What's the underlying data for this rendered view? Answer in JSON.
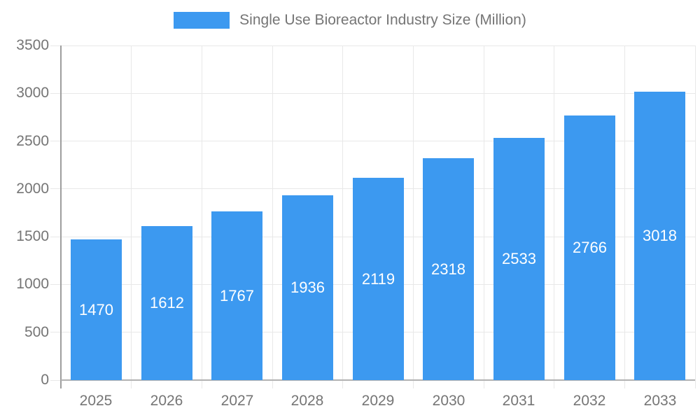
{
  "chart_data": {
    "type": "bar",
    "title": "Single Use Bioreactor Industry Size (Million)",
    "legend": {
      "label": "Single Use Bioreactor Industry Size (Million)",
      "position": "top",
      "swatch": "blue-rectangle"
    },
    "categories": [
      "2025",
      "2026",
      "2027",
      "2028",
      "2029",
      "2030",
      "2031",
      "2032",
      "2033"
    ],
    "values": [
      1470,
      1612,
      1767,
      1936,
      2119,
      2318,
      2533,
      2766,
      3018
    ],
    "xlabel": "",
    "ylabel": "",
    "ylim": [
      0,
      3500
    ],
    "ytick_step": 500,
    "grid": true,
    "bar_labels_visible": true,
    "bar_label_position": "center",
    "colors": {
      "bar": "#3C99F0",
      "bar_label_text": "#FFFFFF",
      "axis_text": "#757575",
      "gridline": "#E8E8E8",
      "axis_line": "#9E9E9E",
      "baseline": "#B2B2B2",
      "background": "#FFFFFF"
    }
  }
}
